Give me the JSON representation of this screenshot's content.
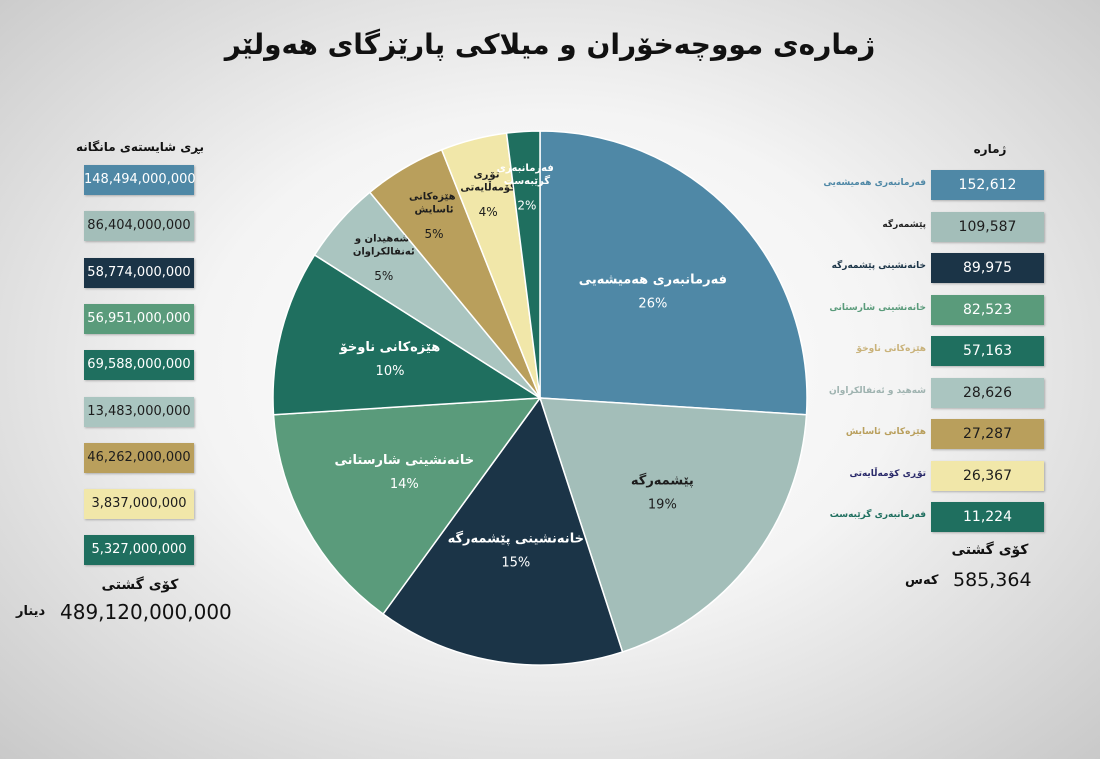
{
  "chart_data": {
    "type": "pie",
    "title": "ژمارەی مووچەخۆران و میلاکی پارێزگای هەولێر",
    "categories": [
      "فەرمانبەری هەمیشەیی",
      "پێشمەرگە",
      "خانەنشینی پێشمەرگە",
      "خانەنشینی شارستانی",
      "هێزەکانی ناوخۆ",
      "شەهیدان و ئەنفالکراوان",
      "هێزەکانی ئاسایش",
      "تۆڕی کۆمەڵایەتی",
      "فەرمانبەری گرێبەست"
    ],
    "values": [
      26,
      19,
      15,
      14,
      10,
      5,
      5,
      4,
      2
    ],
    "value_labels": [
      "26%",
      "19%",
      "15%",
      "14%",
      "10%",
      "5%",
      "5%",
      "4%",
      "2%"
    ],
    "colors": [
      "#4f88a6",
      "#a3beb9",
      "#1b3447",
      "#5a9b7b",
      "#1f6f5f",
      "#aac5c0",
      "#b99f5c",
      "#f1e7a9",
      "#1f6f5f"
    ]
  },
  "salary_panel": {
    "title": "بڕی شایستەی مانگانە",
    "values": [
      "148,494,000,000",
      "86,404,000,000",
      "58,774,000,000",
      "56,951,000,000",
      "69,588,000,000",
      "13,483,000,000",
      "46,262,000,000",
      "3,837,000,000",
      "5,327,000,000"
    ],
    "total_label": "کۆی گشتی",
    "total": "489,120,000,000",
    "unit": "دینار"
  },
  "count_panel": {
    "title": "ژمارە",
    "rows": [
      {
        "label": "فەرمانبەری هەمیشەیی",
        "value": "152,612",
        "label_color": "#4f88a6"
      },
      {
        "label": "پێشمەرگە",
        "value": "109,587",
        "label_color": "#222222"
      },
      {
        "label": "خانەنشینی پێشمەرگە",
        "value": "89,975",
        "label_color": "#1b3447"
      },
      {
        "label": "خانەنشینی شارستانی",
        "value": "82,523",
        "label_color": "#5a9b7b"
      },
      {
        "label": "هێزەکانی ناوخۆ",
        "value": "57,163",
        "label_color": "#c9b27a"
      },
      {
        "label": "شەهید و ئەنفالکراوان",
        "value": "28,626",
        "label_color": "#9fb3b0"
      },
      {
        "label": "هێزەکانی ئاسایش",
        "value": "27,287",
        "label_color": "#b99f5c"
      },
      {
        "label": "تۆڕی کۆمەڵایەتی",
        "value": "26,367",
        "label_color": "#2a2a6a"
      },
      {
        "label": "فەرمانبەری گرێبەست",
        "value": "11,224",
        "label_color": "#1f6f5f"
      }
    ],
    "total_label": "کۆی گشتی",
    "total": "585,364",
    "unit": "کەس"
  }
}
